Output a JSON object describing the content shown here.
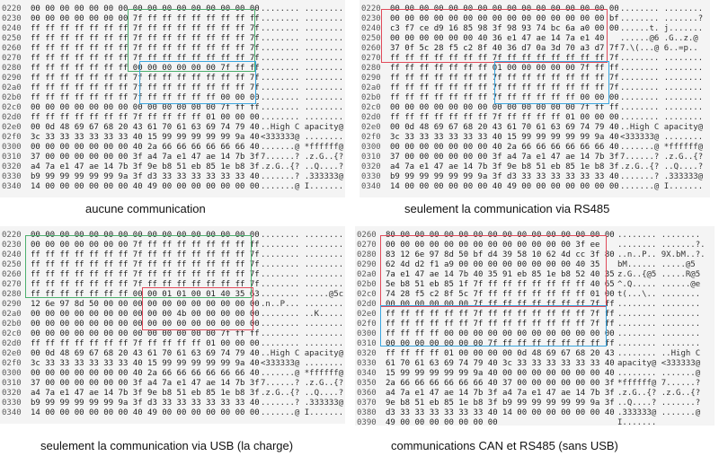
{
  "panels": [
    {
      "id": "tl",
      "caption": "aucune communication",
      "rows": [
        {
          "offset": "0220",
          "hex": "00 00 00 00 00 00 00 00 00 00 00 00 00 00 00 00",
          "ascii": "........ ........"
        },
        {
          "offset": "0230",
          "hex": "00 00 00 00 00 00 00 7f ff ff ff ff ff ff ff ff",
          "ascii": "........ ........"
        },
        {
          "offset": "0240",
          "hex": "ff ff ff ff ff ff ff 7f ff ff ff ff ff ff ff 7f",
          "ascii": "........ ........"
        },
        {
          "offset": "0250",
          "hex": "ff ff ff ff ff ff ff 7f ff ff ff ff ff ff ff 7f",
          "ascii": "........ ........"
        },
        {
          "offset": "0260",
          "hex": "ff ff ff ff ff ff ff 7f ff ff ff ff ff ff ff 7f",
          "ascii": "........ ........"
        },
        {
          "offset": "0270",
          "hex": "ff ff ff ff ff ff ff 7f ff ff ff ff ff ff ff 7f",
          "ascii": "........ ........"
        },
        {
          "offset": "0280",
          "hex": "ff ff ff ff ff ff ff 00 00 00 00 00 00 7f ff ff",
          "ascii": "........ ........"
        },
        {
          "offset": "0290",
          "hex": "ff ff ff ff ff ff ff 7f ff ff ff ff ff ff ff 7f",
          "ascii": "........ ........"
        },
        {
          "offset": "02a0",
          "hex": "ff ff ff ff ff ff ff 7f ff ff ff ff ff ff ff 7f",
          "ascii": "........ ........"
        },
        {
          "offset": "02b0",
          "hex": "ff ff ff ff ff ff ff 7f ff ff ff ff ff 00 00 00",
          "ascii": "........ ........"
        },
        {
          "offset": "02c0",
          "hex": "00 00 00 00 00 00 00 00 00 00 00 00 00 7f ff ff",
          "ascii": "........ ........"
        },
        {
          "offset": "02d0",
          "hex": "ff ff ff ff ff ff ff 7f ff ff ff ff 01 00 00 00",
          "ascii": "........ ........"
        },
        {
          "offset": "02e0",
          "hex": "00 0d 48 69 67 68 20 43 61 70 61 63 69 74 79 40",
          "ascii": "..High C apacity@"
        },
        {
          "offset": "02f0",
          "hex": "3c 33 33 33 33 33 33 40 15 99 99 99 99 99 9a 40",
          "ascii": "<333333@ ........"
        },
        {
          "offset": "0300",
          "hex": "00 00 00 00 00 00 00 40 2a 66 66 66 66 66 66 40",
          "ascii": ".......@ *ffffff@"
        },
        {
          "offset": "0310",
          "hex": "37 00 00 00 00 00 00 3f a4 7a e1 47 ae 14 7b 3f",
          "ascii": "7......? .z.G..{?"
        },
        {
          "offset": "0320",
          "hex": "a4 7a e1 47 ae 14 7b 3f 9e b8 51 eb 85 1e b8 3f",
          "ascii": ".z.G..{? ..Q....?"
        },
        {
          "offset": "0330",
          "hex": "b9 99 99 99 99 99 9a 3f d3 33 33 33 33 33 33 40",
          "ascii": ".......? .333333@"
        },
        {
          "offset": "0340",
          "hex": "14 00 00 00 00 00 00 40 49 00 00 00 00 00 00 00",
          "ascii": ".......@ I......."
        }
      ]
    },
    {
      "id": "tr",
      "caption": "seulement la communication via RS485",
      "rows": [
        {
          "offset": "0220",
          "hex": "00 00 00 00 00 00 00 00 00 00 00 00 00 00 00 00",
          "ascii": "........ ........"
        },
        {
          "offset": "0230",
          "hex": "00 00 00 00 00 00 00 00 00 00 00 00 00 00 00 bf",
          "ascii": "........ .......?"
        },
        {
          "offset": "0240",
          "hex": "c3 f7 ce d9 16 85 98 3f 98 93 74 bc 6a a0 00 00",
          "ascii": "......t. j......."
        },
        {
          "offset": "0250",
          "hex": "00 00 00 00 00 00 40 36 e1 47 ae 14 7a e1 40",
          "ascii": "......@6 .G..z.@"
        },
        {
          "offset": "0260",
          "hex": "37 0f 5c 28 f5 c2 8f 40 36 d7 0a 3d 70 a3 d7 7f",
          "ascii": "7.\\(...@ 6..=p.."
        },
        {
          "offset": "0270",
          "hex": "ff ff ff ff ff ff ff 7f ff ff ff ff ff ff ff 7f",
          "ascii": "........ ........"
        },
        {
          "offset": "0280",
          "hex": "ff ff ff ff ff ff ff 01 00 00 00 00 00 7f ff ff",
          "ascii": "........ ........"
        },
        {
          "offset": "0290",
          "hex": "ff ff ff ff ff ff ff 7f ff ff ff ff ff ff ff 7f",
          "ascii": "........ ........"
        },
        {
          "offset": "02a0",
          "hex": "ff ff ff ff ff ff ff 7f ff ff ff ff ff ff ff 7f",
          "ascii": "........ ........"
        },
        {
          "offset": "02b0",
          "hex": "ff ff ff ff ff ff ff 7f ff ff ff ff ff 00 00 00",
          "ascii": "........ ........"
        },
        {
          "offset": "02c0",
          "hex": "00 00 00 00 00 00 00 00 00 00 00 00 00 7f ff ff",
          "ascii": "........ ........"
        },
        {
          "offset": "02d0",
          "hex": "ff ff ff ff ff ff ff 7f ff ff ff ff 01 00 00 00",
          "ascii": "........ ........"
        },
        {
          "offset": "02e0",
          "hex": "00 0d 48 69 67 68 20 43 61 70 61 63 69 74 79 40",
          "ascii": "..High C apacity@"
        },
        {
          "offset": "02f0",
          "hex": "3c 33 33 33 33 33 33 40 15 99 99 99 99 99 9a 40",
          "ascii": "<333333@ ........"
        },
        {
          "offset": "0300",
          "hex": "00 00 00 00 00 00 00 40 2a 66 66 66 66 66 66 40",
          "ascii": ".......@ *ffffff@"
        },
        {
          "offset": "0310",
          "hex": "37 00 00 00 00 00 00 3f a4 7a e1 47 ae 14 7b 3f",
          "ascii": "7......? .z.G..{?"
        },
        {
          "offset": "0320",
          "hex": "a4 7a e1 47 ae 14 7b 3f 9e b8 51 eb 85 1e b8 3f",
          "ascii": ".z.G..{? ..Q....?"
        },
        {
          "offset": "0330",
          "hex": "b9 99 99 99 99 99 9a 3f d3 33 33 33 33 33 33 40",
          "ascii": ".......? .333333@"
        },
        {
          "offset": "0340",
          "hex": "14 00 00 00 00 00 00 40 49 00 00 00 00 00 00 00",
          "ascii": ".......@ I......."
        }
      ]
    },
    {
      "id": "bl",
      "caption": "seulement la communication via USB (la charge)",
      "rows": [
        {
          "offset": "0220",
          "hex": "00 00 00 00 00 00 00 00 00 00 00 00 00 00 00 00",
          "ascii": "........ ........"
        },
        {
          "offset": "0230",
          "hex": "00 00 00 00 00 00 00 7f ff ff ff ff ff ff ff ff",
          "ascii": "........ ........"
        },
        {
          "offset": "0240",
          "hex": "ff ff ff ff ff ff ff 7f ff ff ff ff ff ff ff 7f",
          "ascii": "........ ........"
        },
        {
          "offset": "0250",
          "hex": "ff ff ff ff ff ff ff 7f ff ff ff ff ff ff ff 7f",
          "ascii": "........ ........"
        },
        {
          "offset": "0260",
          "hex": "ff ff ff ff ff ff ff 7f ff ff ff ff ff ff ff 7f",
          "ascii": "........ ........"
        },
        {
          "offset": "0270",
          "hex": "ff ff ff ff ff ff ff 7f ff ff ff ff ff ff ff 7f",
          "ascii": "........ ........"
        },
        {
          "offset": "0280",
          "hex": "ff ff ff ff ff ff ff 00 00 01 01 00 01 40 35 63",
          "ascii": "........ .....@5c"
        },
        {
          "offset": "0290",
          "hex": "12 6e 97 8d 50 00 00 00 00 00 00 00 00 00 00 00",
          "ascii": ".n..P... ........"
        },
        {
          "offset": "02a0",
          "hex": "00 00 00 00 00 00 00 00 00 00 4b 00 00 00 00 00",
          "ascii": "........ ..K....."
        },
        {
          "offset": "02b0",
          "hex": "00 00 00 00 00 00 00 00 00 00 00 00 00 00 00 00",
          "ascii": "........ ........"
        },
        {
          "offset": "02c0",
          "hex": "00 00 00 00 00 00 00 00 00 00 00 00 00 7f ff ff",
          "ascii": "........ ........"
        },
        {
          "offset": "02d0",
          "hex": "ff ff ff ff ff ff ff 7f ff ff ff ff 01 00 00 00",
          "ascii": "........ ........"
        },
        {
          "offset": "02e0",
          "hex": "00 0d 48 69 67 68 20 43 61 70 61 63 69 74 79 40",
          "ascii": "..High C apacity@"
        },
        {
          "offset": "02f0",
          "hex": "3c 33 33 33 33 33 33 40 15 99 99 99 99 99 9a 40",
          "ascii": "<333333@ ........"
        },
        {
          "offset": "0300",
          "hex": "00 00 00 00 00 00 00 40 2a 66 66 66 66 66 66 40",
          "ascii": ".......@ *ffffff@"
        },
        {
          "offset": "0310",
          "hex": "37 00 00 00 00 00 00 3f a4 7a e1 47 ae 14 7b 3f",
          "ascii": "7......? .z.G..{?"
        },
        {
          "offset": "0320",
          "hex": "a4 7a e1 47 ae 14 7b 3f 9e b8 51 eb 85 1e b8 3f",
          "ascii": ".z.G..{? ..Q....?"
        },
        {
          "offset": "0330",
          "hex": "b9 99 99 99 99 99 9a 3f d3 33 33 33 33 33 33 40",
          "ascii": ".......? .333333@"
        },
        {
          "offset": "0340",
          "hex": "14 00 00 00 00 00 00 40 49 00 00 00 00 00 00 00",
          "ascii": ".......@ I......."
        }
      ]
    },
    {
      "id": "br",
      "caption": "communications CAN et RS485 (sans USB)",
      "rows": [
        {
          "offset": "0260",
          "hex": "80 00 00 00 00 00 00 00 00 00 00 00 00 00 00 00",
          "ascii": "........ ........"
        },
        {
          "offset": "0270",
          "hex": "00 00 00 00 00 00 00 00 00 00 00 00 00 3f ee",
          "ascii": "........ .......?."
        },
        {
          "offset": "0280",
          "hex": "83 12 6e 97 8d 50 bf d4 39 58 10 62 4d cc 3f 80",
          "ascii": "..n..P.. 9X.bM..?."
        },
        {
          "offset": "0290",
          "hex": "62 4d d2 f1 a9 00 00 00 00 00 00 00 00 40 35",
          "ascii": "bM...... .....@5"
        },
        {
          "offset": "02a0",
          "hex": "7a e1 47 ae 14 7b 40 35 91 eb 85 1e b8 52 40 35",
          "ascii": "z.G..{@5 .....R@5"
        },
        {
          "offset": "02b0",
          "hex": "5e b8 51 eb 85 1f 7f ff ff ff ff ff ff ff 40 65",
          "ascii": "^.Q..... ......@e"
        },
        {
          "offset": "02c0",
          "hex": "74 28 f5 c2 8f 5c 7f ff ff ff ff ff ff ff 01 00",
          "ascii": "t(...\\.. ........"
        },
        {
          "offset": "02d0",
          "hex": "00 00 00 00 00 00 7f ff ff ff ff ff ff ff 7f ff",
          "ascii": "........ ........"
        },
        {
          "offset": "02e0",
          "hex": "ff ff ff ff ff ff 7f ff ff ff ff ff ff ff 7f ff",
          "ascii": "........ ........"
        },
        {
          "offset": "02f0",
          "hex": "ff ff ff ff ff ff 7f ff ff ff ff ff ff ff 7f ff",
          "ascii": "........ ........"
        },
        {
          "offset": "0300",
          "hex": "ff ff ff ff 00 00 00 00 00 00 00 00 00 00 00 00",
          "ascii": "........ ........"
        },
        {
          "offset": "0310",
          "hex": "00 00 00 00 00 00 00 7f ff ff ff ff ff ff ff ff",
          "ascii": "........ ........"
        },
        {
          "offset": "0320",
          "hex": "ff ff ff ff 01 00 00 00 00 0d 48 69 67 68 20 43",
          "ascii": "........ ..High C"
        },
        {
          "offset": "0330",
          "hex": "61 70 61 63 69 74 79 40 3c 33 33 33 33 33 33 40",
          "ascii": "apacity@ <333333@"
        },
        {
          "offset": "0340",
          "hex": "15 99 99 99 99 99 9a 40 00 00 00 00 00 00 00 40",
          "ascii": "........ .......@"
        },
        {
          "offset": "0350",
          "hex": "2a 66 66 66 66 66 66 40 37 00 00 00 00 00 00 3f",
          "ascii": "*ffffff@ 7......?"
        },
        {
          "offset": "0360",
          "hex": "a4 7a e1 47 ae 14 7b 3f a4 7a e1 47 ae 14 7b 3f",
          "ascii": ".z.G..{? .z.G..{?"
        },
        {
          "offset": "0370",
          "hex": "9e b8 51 eb 85 1e b8 3f b9 99 99 99 99 99 9a 3f",
          "ascii": "..Q....? .......?"
        },
        {
          "offset": "0380",
          "hex": "d3 33 33 33 33 33 33 40 14 00 00 00 00 00 00 40",
          "ascii": ".333333@ .......@"
        },
        {
          "offset": "0390",
          "hex": "49 00 00 00 00 00 00 00",
          "ascii": "I......."
        }
      ]
    }
  ]
}
